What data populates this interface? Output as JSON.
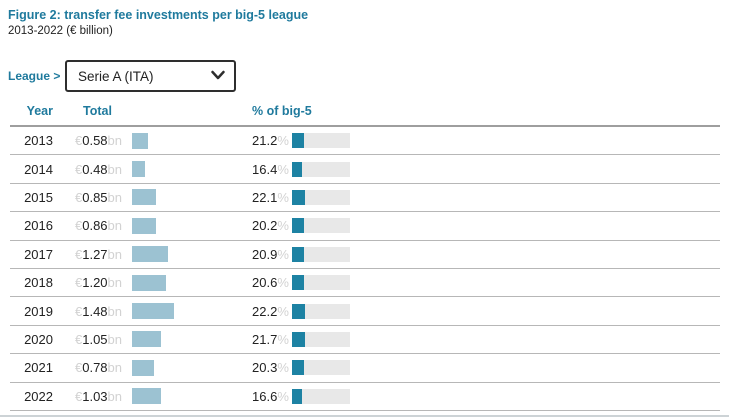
{
  "header": {
    "title": "Figure 2: transfer fee investments per big-5 league",
    "subtitle": "2013-2022 (€ billion)"
  },
  "controls": {
    "label": "League >",
    "selected_league": "Serie A (ITA)"
  },
  "table": {
    "columns": {
      "year": "Year",
      "total": "Total",
      "pct": "% of big-5"
    },
    "currency_prefix": "€",
    "unit_suffix": "bn",
    "pct_suffix": "%",
    "rows": [
      {
        "year": "2013",
        "total": "0.58",
        "pct": "21.2"
      },
      {
        "year": "2014",
        "total": "0.48",
        "pct": "16.4"
      },
      {
        "year": "2015",
        "total": "0.85",
        "pct": "22.1"
      },
      {
        "year": "2016",
        "total": "0.86",
        "pct": "20.2"
      },
      {
        "year": "2017",
        "total": "1.27",
        "pct": "20.9"
      },
      {
        "year": "2018",
        "total": "1.20",
        "pct": "20.6"
      },
      {
        "year": "2019",
        "total": "1.48",
        "pct": "22.2"
      },
      {
        "year": "2020",
        "total": "1.05",
        "pct": "21.7"
      },
      {
        "year": "2021",
        "total": "0.78",
        "pct": "20.3"
      },
      {
        "year": "2022",
        "total": "1.03",
        "pct": "16.6"
      }
    ]
  },
  "colors": {
    "accent_teal_text": "#1f7a9d",
    "total_bar": "#9cc2d2",
    "pct_bar_fill": "#1d82a3",
    "pct_bar_track": "#e8e8e8",
    "dim_text": "#d2d2d2",
    "row_separator": "#b7b7b7"
  },
  "chart_data": {
    "type": "table",
    "title": "Figure 2: transfer fee investments per big-5 league",
    "subtitle": "2013-2022 (€ billion)",
    "selected_league": "Serie A (ITA)",
    "columns": [
      "Year",
      "Total",
      "% of big-5"
    ],
    "categories": [
      2013,
      2014,
      2015,
      2016,
      2017,
      2018,
      2019,
      2020,
      2021,
      2022
    ],
    "series": [
      {
        "name": "Total (€ billion)",
        "values": [
          0.58,
          0.48,
          0.85,
          0.86,
          1.27,
          1.2,
          1.48,
          1.05,
          0.78,
          1.03
        ]
      },
      {
        "name": "% of big-5",
        "values": [
          21.2,
          16.4,
          22.1,
          20.2,
          20.9,
          20.6,
          22.2,
          21.7,
          20.3,
          16.6
        ]
      }
    ],
    "layout": {
      "bars": "horizontal inline",
      "pct_axis_range": [
        0,
        100
      ]
    }
  }
}
